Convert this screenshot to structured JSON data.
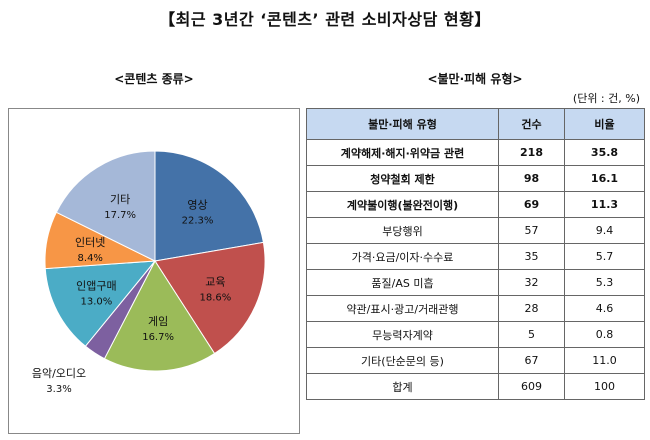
{
  "title": "【최근 3년간 ‘콘텐츠’ 관련 소비자상담 현황】",
  "left_heading": "<콘텐츠 종류>",
  "right_heading": "<불만·피해 유형>",
  "unit_note": "(단위 : 건, %)",
  "table": {
    "headers": [
      "불만·피해 유형",
      "건수",
      "비율"
    ],
    "rows": [
      {
        "type": "계약해제·해지·위약금 관련",
        "count": "218",
        "ratio": "35.8",
        "bold": true
      },
      {
        "type": "청약철회 제한",
        "count": "98",
        "ratio": "16.1",
        "bold": true
      },
      {
        "type": "계약불이행(불완전이행)",
        "count": "69",
        "ratio": "11.3",
        "bold": true
      },
      {
        "type": "부당행위",
        "count": "57",
        "ratio": "9.4",
        "bold": false
      },
      {
        "type": "가격·요금/이자·수수료",
        "count": "35",
        "ratio": "5.7",
        "bold": false
      },
      {
        "type": "품질/AS 미흡",
        "count": "32",
        "ratio": "5.3",
        "bold": false
      },
      {
        "type": "약관/표시·광고/거래관행",
        "count": "28",
        "ratio": "4.6",
        "bold": false
      },
      {
        "type": "무능력자계약",
        "count": "5",
        "ratio": "0.8",
        "bold": false
      },
      {
        "type": "기타(단순문의 등)",
        "count": "67",
        "ratio": "11.0",
        "bold": false
      },
      {
        "type": "합계",
        "count": "609",
        "ratio": "100",
        "bold": false
      }
    ]
  },
  "chart_data": {
    "type": "pie",
    "slices": [
      {
        "label": "영상",
        "value": 22.3,
        "display": "22.3%",
        "color": "#4472a8"
      },
      {
        "label": "교육",
        "value": 18.6,
        "display": "18.6%",
        "color": "#c0504d"
      },
      {
        "label": "게임",
        "value": 16.7,
        "display": "16.7%",
        "color": "#9bbb59"
      },
      {
        "label": "음악/오디오",
        "value": 3.3,
        "display": "3.3%",
        "color": "#7d60a0"
      },
      {
        "label": "인앱구매",
        "value": 13.0,
        "display": "13.0%",
        "color": "#4bacc6"
      },
      {
        "label": "인터넷",
        "value": 8.4,
        "display": "8.4%",
        "color": "#f79646"
      },
      {
        "label": "기타",
        "value": 17.7,
        "display": "17.7%",
        "color": "#a5b8d8"
      }
    ]
  }
}
